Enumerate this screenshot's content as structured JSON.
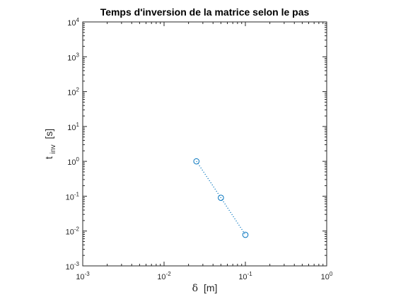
{
  "chart_data": {
    "type": "scatter",
    "title": "Temps d'inversion de la matrice selon le pas",
    "xlabel": {
      "symbol": "δ",
      "unit": "[m]"
    },
    "ylabel": {
      "base": "t",
      "subscript": "inv",
      "unit": "[s]"
    },
    "xscale": "log",
    "yscale": "log",
    "xlim": [
      0.001,
      1
    ],
    "ylim": [
      0.001,
      10000
    ],
    "x_ticks": [
      {
        "base": "10",
        "exp": "-3"
      },
      {
        "base": "10",
        "exp": "-2"
      },
      {
        "base": "10",
        "exp": "-1"
      },
      {
        "base": "10",
        "exp": "0"
      }
    ],
    "y_ticks": [
      {
        "base": "10",
        "exp": "-3"
      },
      {
        "base": "10",
        "exp": "-2"
      },
      {
        "base": "10",
        "exp": "-1"
      },
      {
        "base": "10",
        "exp": "0"
      },
      {
        "base": "10",
        "exp": "1"
      },
      {
        "base": "10",
        "exp": "2"
      },
      {
        "base": "10",
        "exp": "3"
      },
      {
        "base": "10",
        "exp": "4"
      }
    ],
    "grid": false,
    "box": true,
    "series": [
      {
        "x": [
          0.025,
          0.05,
          0.1
        ],
        "y": [
          1.0,
          0.09,
          0.0078
        ],
        "marker": "circle",
        "line_style": "dotted",
        "color": "#0072BD"
      }
    ]
  }
}
